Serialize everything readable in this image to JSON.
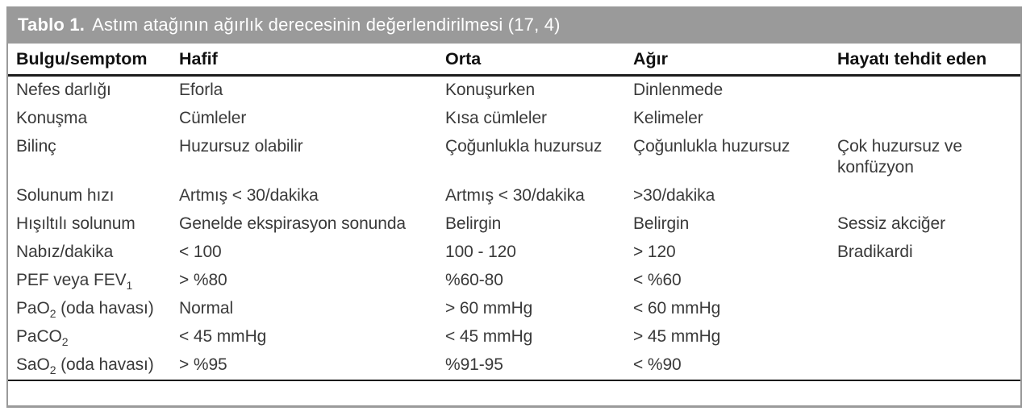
{
  "title": {
    "label": "Tablo 1.",
    "text": "Astım atağının ağırlık derecesinin değerlendirilmesi (17, 4)"
  },
  "table": {
    "columns": [
      "Bulgu/semptom",
      "Hafif",
      "Orta",
      "Ağır",
      "Hayatı tehdit eden"
    ],
    "rows": [
      {
        "label": {
          "pre": "Nefes darlığı",
          "sub": "",
          "post": ""
        },
        "cells": [
          "Eforla",
          "Konuşurken",
          "Dinlenmede",
          ""
        ]
      },
      {
        "label": {
          "pre": "Konuşma",
          "sub": "",
          "post": ""
        },
        "cells": [
          "Cümleler",
          "Kısa cümleler",
          "Kelimeler",
          ""
        ]
      },
      {
        "label": {
          "pre": "Bilinç",
          "sub": "",
          "post": ""
        },
        "cells": [
          "Huzursuz olabilir",
          "Çoğunlukla huzursuz",
          "Çoğunlukla huzursuz",
          "Çok huzursuz ve konfüzyon"
        ]
      },
      {
        "label": {
          "pre": "Solunum hızı",
          "sub": "",
          "post": ""
        },
        "cells": [
          "Artmış < 30/dakika",
          "Artmış < 30/dakika",
          ">30/dakika",
          ""
        ]
      },
      {
        "label": {
          "pre": "Hışıltılı solunum",
          "sub": "",
          "post": ""
        },
        "cells": [
          "Genelde ekspirasyon sonunda",
          "Belirgin",
          "Belirgin",
          "Sessiz akciğer"
        ]
      },
      {
        "label": {
          "pre": "Nabız/dakika",
          "sub": "",
          "post": ""
        },
        "cells": [
          "< 100",
          "100 - 120",
          "> 120",
          "Bradikardi"
        ]
      },
      {
        "label": {
          "pre": "PEF veya FEV",
          "sub": "1",
          "post": ""
        },
        "cells": [
          "> %80",
          "%60-80",
          "< %60",
          ""
        ]
      },
      {
        "label": {
          "pre": "PaO",
          "sub": "2",
          "post": " (oda havası)"
        },
        "cells": [
          "Normal",
          "> 60 mmHg",
          "< 60 mmHg",
          ""
        ]
      },
      {
        "label": {
          "pre": "PaCO",
          "sub": "2",
          "post": ""
        },
        "cells": [
          "< 45 mmHg",
          "< 45 mmHg",
          "> 45 mmHg",
          ""
        ]
      },
      {
        "label": {
          "pre": "SaO",
          "sub": "2",
          "post": " (oda havası)"
        },
        "cells": [
          "> %95",
          "%91-95",
          "< %90",
          ""
        ]
      }
    ]
  },
  "colors": {
    "header_bar": "#9a9a9a",
    "border_gray": "#9a9a9a",
    "rule_black": "#1c1c1c",
    "header_text": "#ffffff",
    "column_header_text": "#111111",
    "body_text": "#3a3a3a"
  }
}
